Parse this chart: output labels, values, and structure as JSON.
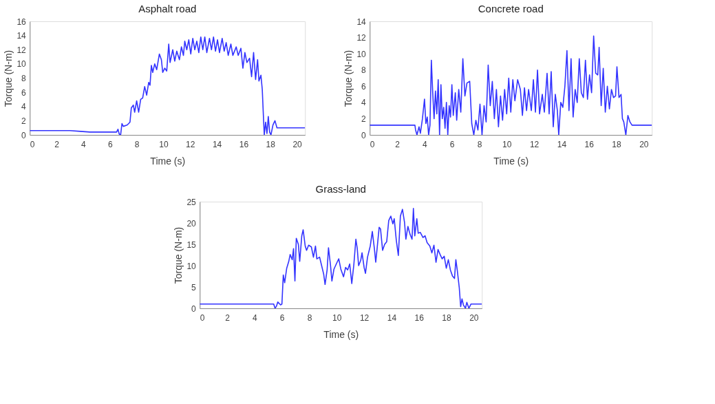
{
  "chart_data": [
    {
      "type": "line",
      "title": "Asphalt road",
      "xlabel": "Time (s)",
      "ylabel": "Torque (N-m)",
      "xlim": [
        0,
        20.6
      ],
      "ylim": [
        0,
        16
      ],
      "xticks": [
        0,
        2,
        4,
        6,
        8,
        10,
        12,
        14,
        16,
        18,
        20
      ],
      "yticks": [
        0,
        2,
        4,
        6,
        8,
        10,
        12,
        14,
        16
      ],
      "grid": false,
      "x": [
        0,
        1,
        2,
        3,
        3.8,
        4.5,
        5.5,
        6.5,
        6.6,
        6.7,
        6.8,
        6.9,
        7.0,
        7.3,
        7.5,
        7.6,
        7.75,
        7.85,
        8.0,
        8.15,
        8.3,
        8.45,
        8.6,
        8.75,
        8.9,
        9.0,
        9.1,
        9.2,
        9.35,
        9.5,
        9.7,
        9.85,
        9.95,
        10.1,
        10.25,
        10.4,
        10.5,
        10.7,
        10.85,
        11.0,
        11.2,
        11.35,
        11.5,
        11.6,
        11.75,
        11.9,
        12.05,
        12.2,
        12.35,
        12.5,
        12.65,
        12.8,
        12.95,
        13.1,
        13.25,
        13.45,
        13.6,
        13.75,
        13.9,
        14.05,
        14.2,
        14.4,
        14.55,
        14.7,
        14.85,
        15.05,
        15.2,
        15.45,
        15.6,
        15.8,
        15.95,
        16.1,
        16.25,
        16.45,
        16.6,
        16.75,
        16.9,
        17.05,
        17.15,
        17.3,
        17.4,
        17.5,
        17.55,
        17.65,
        17.75,
        17.85,
        17.95,
        18.05,
        18.2,
        18.35,
        18.5,
        19.0,
        19.5,
        20.0,
        20.6
      ],
      "series": [
        {
          "color": "#3333ff",
          "values": [
            0.6,
            0.6,
            0.6,
            0.6,
            0.5,
            0.4,
            0.4,
            0.4,
            0.8,
            0.1,
            0,
            1.6,
            1.2,
            1.4,
            1.8,
            3.8,
            4.2,
            3.2,
            4.8,
            3.2,
            5,
            5.2,
            6.8,
            5.6,
            7.4,
            7.0,
            9.8,
            8.8,
            10,
            9.2,
            11.4,
            10.6,
            8.8,
            9.4,
            9.0,
            12.8,
            10.2,
            12,
            10.4,
            11.8,
            10.6,
            12.4,
            11.2,
            13.2,
            12.0,
            13.4,
            11.4,
            13.6,
            12.0,
            13.2,
            11.6,
            13.8,
            12.0,
            13.8,
            11.6,
            13.6,
            12.0,
            13.8,
            11.8,
            13.4,
            11.6,
            13.6,
            11.8,
            13.0,
            11.2,
            12.8,
            11.2,
            12.4,
            11.2,
            12.2,
            9.4,
            11.6,
            10.2,
            10.8,
            8.2,
            11.6,
            7.8,
            10.6,
            7.6,
            8.4,
            6.4,
            2.0,
            0,
            1.8,
            0.2,
            2.6,
            0.4,
            0,
            1.4,
            2.0,
            1.0,
            1.0,
            1.0,
            1.0,
            1.0
          ]
        }
      ]
    },
    {
      "type": "line",
      "title": "Concrete road",
      "xlabel": "Time (s)",
      "ylabel": "Torque (N-m)",
      "xlim": [
        0,
        20.6
      ],
      "ylim": [
        0,
        14
      ],
      "xticks": [
        0,
        2,
        4,
        6,
        8,
        10,
        12,
        14,
        16,
        18,
        20
      ],
      "yticks": [
        0,
        2,
        4,
        6,
        8,
        10,
        12,
        14
      ],
      "grid": false,
      "x": [
        0,
        1,
        2,
        3,
        3.3,
        3.35,
        3.45,
        3.6,
        3.7,
        3.85,
        4.0,
        4.1,
        4.2,
        4.3,
        4.4,
        4.5,
        4.6,
        4.7,
        4.8,
        4.9,
        5.0,
        5.1,
        5.2,
        5.3,
        5.4,
        5.5,
        5.6,
        5.7,
        5.8,
        5.9,
        6.0,
        6.1,
        6.25,
        6.35,
        6.5,
        6.65,
        6.8,
        6.95,
        7.1,
        7.3,
        7.45,
        7.6,
        7.75,
        7.9,
        8.05,
        8.2,
        8.35,
        8.5,
        8.65,
        8.8,
        8.95,
        9.1,
        9.25,
        9.4,
        9.55,
        9.7,
        9.85,
        10.0,
        10.15,
        10.3,
        10.45,
        10.6,
        10.8,
        11.0,
        11.15,
        11.3,
        11.45,
        11.6,
        11.8,
        11.95,
        12.1,
        12.25,
        12.4,
        12.6,
        12.75,
        12.95,
        13.1,
        13.25,
        13.4,
        13.55,
        13.7,
        13.8,
        13.95,
        14.1,
        14.25,
        14.4,
        14.55,
        14.7,
        14.85,
        15.0,
        15.15,
        15.3,
        15.45,
        15.6,
        15.75,
        15.9,
        16.05,
        16.2,
        16.35,
        16.5,
        16.65,
        16.75,
        16.9,
        17.05,
        17.2,
        17.35,
        17.5,
        17.65,
        17.8,
        17.95,
        18.05,
        18.2,
        18.35,
        18.45,
        18.55,
        18.7,
        18.85,
        19.0,
        19.15,
        19.5,
        20.0,
        20.6
      ],
      "series": [
        {
          "color": "#3333ff",
          "values": [
            1.2,
            1.2,
            1.2,
            1.2,
            1.2,
            0.6,
            0,
            1,
            0.2,
            2,
            4.4,
            1.4,
            2.2,
            0,
            1.2,
            9.2,
            5.2,
            2.0,
            5.4,
            2.6,
            6.8,
            0,
            6.2,
            2,
            3.4,
            0.8,
            4.0,
            0,
            3.6,
            2.2,
            6.2,
            2.4,
            5.2,
            1.8,
            5.6,
            2.8,
            9.4,
            4.8,
            6.4,
            6.6,
            1.4,
            0,
            1.8,
            0.6,
            3.8,
            0,
            3.6,
            1.6,
            8.6,
            3.6,
            6.6,
            2.0,
            5.6,
            1.0,
            4.8,
            1.8,
            5.6,
            2.6,
            7.0,
            2.8,
            6.8,
            4.2,
            6.8,
            5.6,
            2.4,
            5.8,
            3.0,
            5.6,
            3.0,
            6.8,
            2.8,
            8.0,
            2.6,
            5.0,
            2.8,
            7.6,
            2.6,
            7.8,
            1.0,
            5.0,
            3.0,
            0,
            4.0,
            3.4,
            6.0,
            10.4,
            3.0,
            9.4,
            2.2,
            5.6,
            4.0,
            9.4,
            5.2,
            4.6,
            9.2,
            4.4,
            7.4,
            5.2,
            12.2,
            7.6,
            7.4,
            10.8,
            3.6,
            8.2,
            2.8,
            6.0,
            3.2,
            5.6,
            4.6,
            4.8,
            8.4,
            4.6,
            5.0,
            2.0,
            1.6,
            0,
            2.4,
            1.6,
            1.2,
            1.2,
            1.2,
            1.2
          ]
        }
      ]
    },
    {
      "type": "line",
      "title": "Grass-land",
      "xlabel": "Time (s)",
      "ylabel": "Torque (N-m)",
      "xlim": [
        0,
        20.6
      ],
      "ylim": [
        0,
        25
      ],
      "xticks": [
        0,
        2,
        4,
        6,
        8,
        10,
        12,
        14,
        16,
        18,
        20
      ],
      "yticks": [
        0,
        5,
        10,
        15,
        20,
        25
      ],
      "grid": false,
      "x": [
        0,
        1,
        2,
        3,
        4,
        5,
        5.4,
        5.5,
        5.6,
        5.7,
        5.9,
        6.0,
        6.1,
        6.2,
        6.35,
        6.5,
        6.6,
        6.75,
        6.85,
        6.95,
        7.05,
        7.2,
        7.3,
        7.45,
        7.55,
        7.7,
        7.8,
        7.95,
        8.15,
        8.3,
        8.45,
        8.55,
        8.75,
        8.9,
        9.05,
        9.15,
        9.3,
        9.4,
        9.55,
        9.65,
        9.8,
        10.0,
        10.15,
        10.3,
        10.5,
        10.65,
        10.8,
        10.95,
        11.1,
        11.25,
        11.4,
        11.5,
        11.6,
        11.75,
        11.85,
        12.0,
        12.1,
        12.25,
        12.45,
        12.6,
        12.75,
        12.85,
        12.95,
        13.1,
        13.2,
        13.35,
        13.5,
        13.65,
        13.8,
        13.95,
        14.1,
        14.2,
        14.35,
        14.5,
        14.65,
        14.8,
        14.95,
        15.05,
        15.2,
        15.35,
        15.5,
        15.6,
        15.7,
        15.85,
        15.95,
        16.1,
        16.3,
        16.45,
        16.6,
        16.8,
        16.95,
        17.1,
        17.25,
        17.4,
        17.55,
        17.7,
        17.85,
        18.0,
        18.15,
        18.3,
        18.45,
        18.6,
        18.7,
        18.8,
        18.95,
        19.05,
        19.15,
        19.25,
        19.4,
        19.5,
        19.65,
        19.8,
        20.6
      ],
      "series": [
        {
          "color": "#3333ff",
          "values": [
            1,
            1,
            1,
            1,
            1,
            1,
            1,
            0,
            0.5,
            1.5,
            0.8,
            1,
            7.8,
            6,
            9.4,
            11,
            12.6,
            11.4,
            14,
            6.4,
            16.4,
            15,
            11,
            17,
            18.4,
            14.6,
            13.6,
            14.8,
            14.4,
            12,
            14.6,
            11.6,
            12,
            10,
            8,
            5.6,
            9,
            14.2,
            10,
            6.4,
            9.2,
            10.6,
            11.6,
            9.2,
            7.4,
            9.6,
            9.0,
            10.4,
            5.8,
            10.2,
            16.2,
            14,
            10,
            11.2,
            13,
            9.6,
            8.2,
            12.0,
            14.6,
            18.0,
            14.0,
            10.8,
            14,
            19,
            18.6,
            13.6,
            15.0,
            15.6,
            20.6,
            21.6,
            19.8,
            21.0,
            16.0,
            12.4,
            21.6,
            23.2,
            20.2,
            16.2,
            19.2,
            17.4,
            16.2,
            23.4,
            17.0,
            21,
            17.6,
            17.8,
            16.6,
            17.0,
            15.4,
            14.6,
            13,
            14.8,
            10.8,
            13.8,
            12.6,
            11.6,
            12.2,
            9.4,
            11.4,
            9.0,
            7.6,
            7.0,
            11.4,
            9.0,
            4.8,
            0.4,
            2.2,
            0.8,
            0,
            1.4,
            0,
            1,
            1
          ]
        }
      ]
    }
  ]
}
